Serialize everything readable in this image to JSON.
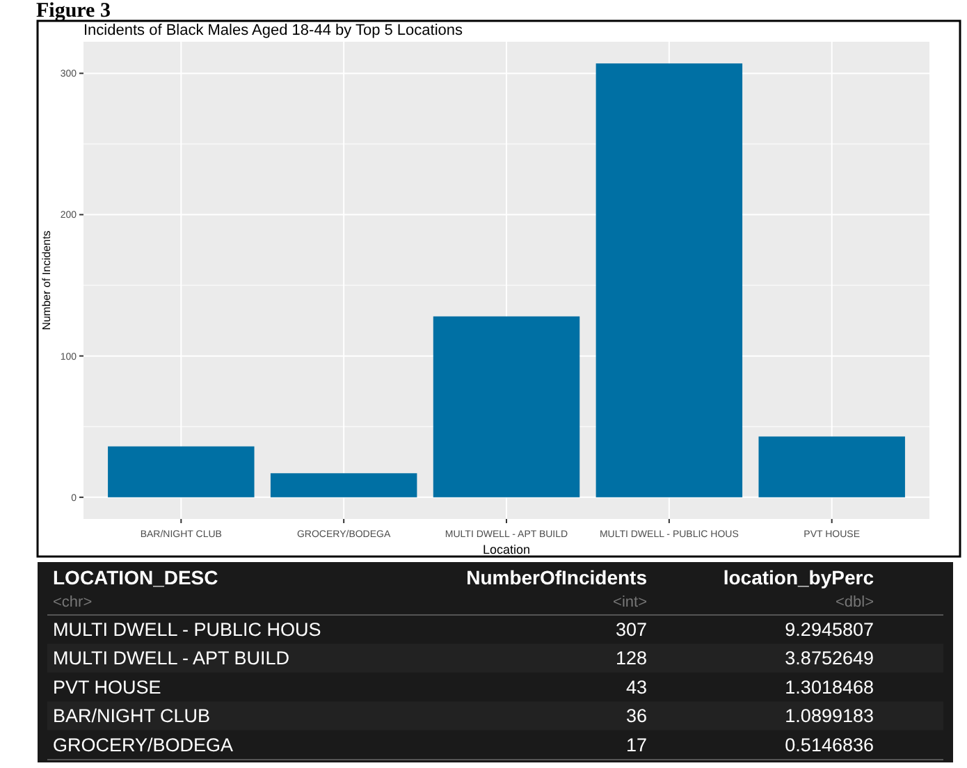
{
  "chart_data": [
    {
      "type": "bar",
      "title": "Incidents of Black Males Aged 18-44 by Top 5 Locations",
      "annotations": [
        "Figure 3"
      ],
      "xlabel": "Location",
      "ylabel": "Number of Incidents",
      "categories": [
        "BAR/NIGHT CLUB",
        "GROCERY/BODEGA",
        "MULTI DWELL - APT BUILD",
        "MULTI DWELL - PUBLIC HOUS",
        "PVT HOUSE"
      ],
      "values": [
        36,
        17,
        128,
        307,
        43
      ],
      "color": "#0070a4",
      "ylim": [
        -15.35,
        322.35
      ],
      "yticks": [
        0,
        100,
        200,
        300
      ],
      "grid": true
    },
    {
      "type": "other",
      "xlabel": "LOCATION_DESC",
      "annotations": [
        "<chr>",
        "<int>",
        "<dbl>"
      ],
      "categories": [
        "MULTI DWELL - PUBLIC HOUS",
        "MULTI DWELL - APT BUILD",
        "PVT HOUSE",
        "BAR/NIGHT CLUB",
        "GROCERY/BODEGA"
      ],
      "data_labels": true,
      "series": [
        {
          "name": "NumberOfIncidents",
          "color": "#1a1a1a",
          "values": [
            307,
            128,
            43,
            36,
            17
          ]
        },
        {
          "name": "location_byPerc",
          "values": [
            9.2945807,
            3.8752649,
            1.3018468,
            1.0899183,
            0.5146836
          ]
        }
      ]
    }
  ]
}
